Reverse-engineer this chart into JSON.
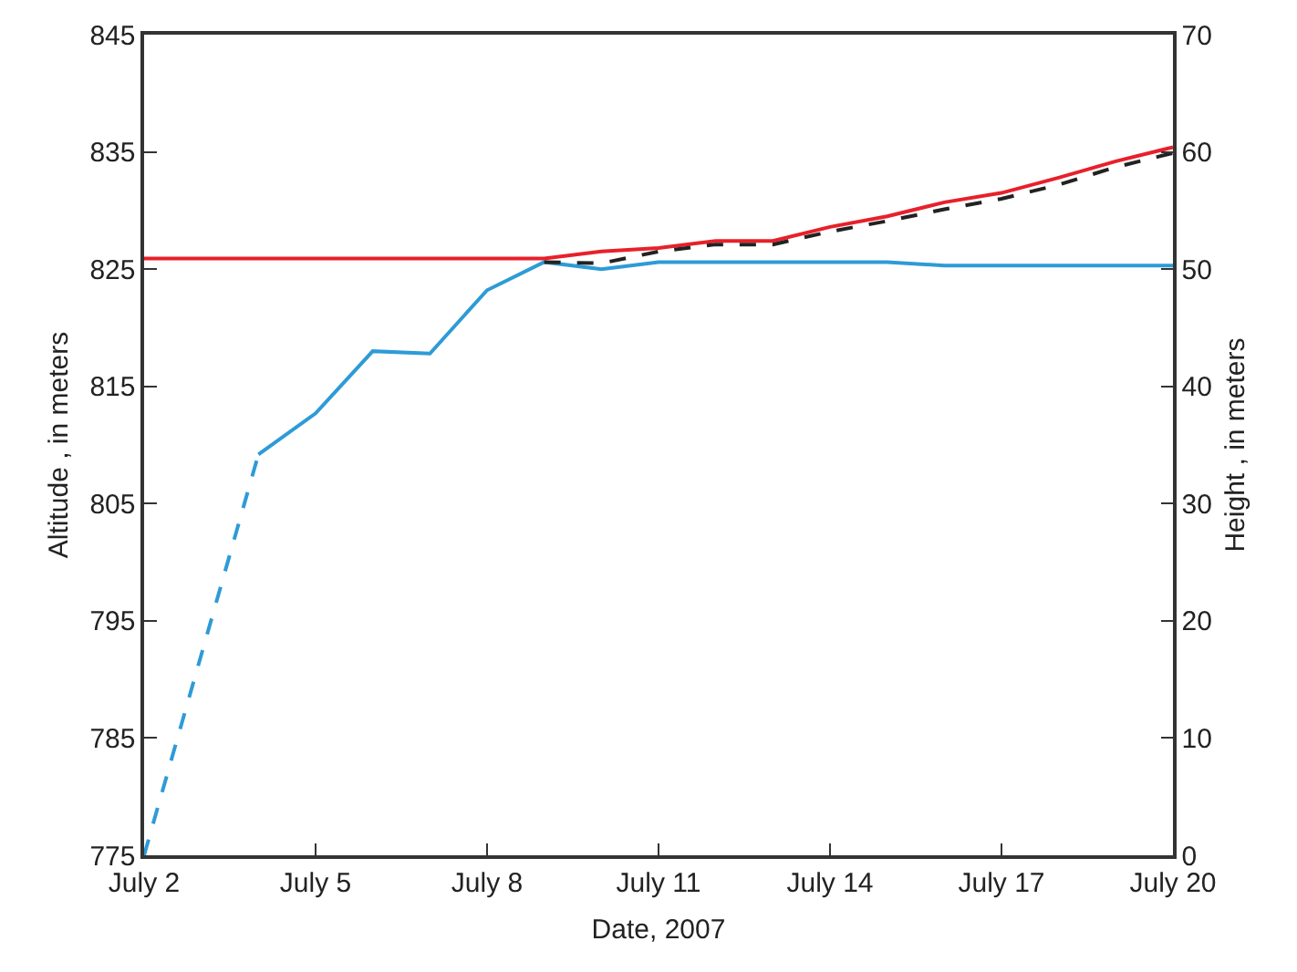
{
  "chart_data": {
    "type": "line",
    "xlabel": "Date, 2007",
    "ylabel": "Altitude , in meters",
    "y2label": "Height , in meters",
    "series": [
      {
        "color": "#2e9bd6",
        "line_style": "dashed",
        "x": [
          "2007-07-02",
          "2007-07-04"
        ],
        "values": [
          775,
          809.2
        ]
      },
      {
        "color": "#2e9bd6",
        "line_style": "solid",
        "x": [
          "2007-07-04",
          "2007-07-05",
          "2007-07-06",
          "2007-07-07",
          "2007-07-08",
          "2007-07-09",
          "2007-07-10",
          "2007-07-11",
          "2007-07-12",
          "2007-07-13",
          "2007-07-14",
          "2007-07-15",
          "2007-07-16",
          "2007-07-17",
          "2007-07-18",
          "2007-07-19",
          "2007-07-20"
        ],
        "values": [
          809.2,
          812.7,
          818.0,
          817.8,
          823.2,
          825.6,
          825.0,
          825.6,
          825.6,
          825.6,
          825.6,
          825.6,
          825.3,
          825.3,
          825.3,
          825.3,
          825.3
        ]
      },
      {
        "color": "#e8202a",
        "line_style": "solid",
        "x": [
          "2007-07-02",
          "2007-07-09",
          "2007-07-10",
          "2007-07-11",
          "2007-07-12",
          "2007-07-13",
          "2007-07-14",
          "2007-07-15",
          "2007-07-16",
          "2007-07-17",
          "2007-07-18",
          "2007-07-19",
          "2007-07-20"
        ],
        "values": [
          825.9,
          825.9,
          826.5,
          826.8,
          827.4,
          827.4,
          828.6,
          829.5,
          830.7,
          831.5,
          832.8,
          834.2,
          835.4
        ]
      },
      {
        "color": "#222222",
        "line_style": "dashed",
        "x": [
          "2007-07-09",
          "2007-07-10",
          "2007-07-11",
          "2007-07-12",
          "2007-07-13",
          "2007-07-14",
          "2007-07-15",
          "2007-07-16",
          "2007-07-17",
          "2007-07-18",
          "2007-07-19",
          "2007-07-20"
        ],
        "values": [
          825.6,
          825.5,
          826.5,
          827.1,
          827.1,
          828.2,
          829.1,
          830.1,
          831.0,
          832.2,
          833.7,
          834.9
        ]
      }
    ],
    "xlim": [
      "2007-07-02",
      "2007-07-20"
    ],
    "xticks": [
      {
        "value": "2007-07-02",
        "label": "July 2"
      },
      {
        "value": "2007-07-05",
        "label": "July 5"
      },
      {
        "value": "2007-07-08",
        "label": "July 8"
      },
      {
        "value": "2007-07-11",
        "label": "July 11"
      },
      {
        "value": "2007-07-14",
        "label": "July 14"
      },
      {
        "value": "2007-07-17",
        "label": "July 17"
      },
      {
        "value": "2007-07-20",
        "label": "July 20"
      }
    ],
    "ylim": [
      775,
      845
    ],
    "yticks": [
      775,
      785,
      795,
      805,
      815,
      825,
      835,
      845
    ],
    "y2lim": [
      0,
      70
    ],
    "y2ticks": [
      0,
      10,
      20,
      30,
      40,
      50,
      60,
      70
    ],
    "grid": false,
    "marker": "none"
  }
}
